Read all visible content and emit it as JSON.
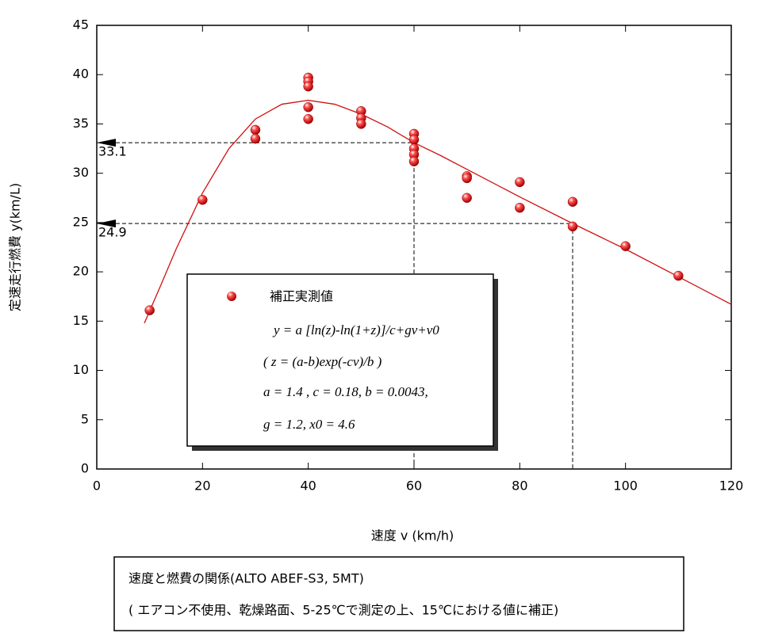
{
  "chart_data": {
    "type": "scatter",
    "x_label": "速度 v (km/h)",
    "y_label": "定速走行燃費 y(km/L)",
    "xlim": [
      0,
      120
    ],
    "xticks": [
      0,
      20,
      40,
      60,
      80,
      100,
      120
    ],
    "ylim": [
      0,
      45
    ],
    "yticks": [
      0,
      5,
      10,
      15,
      20,
      25,
      30,
      35,
      40,
      45
    ],
    "series": [
      {
        "name": "補正実測値",
        "color": "#e01010",
        "x": [
          10,
          20,
          30,
          30,
          40,
          40,
          40,
          40,
          40,
          50,
          50,
          50,
          60,
          60,
          60,
          60,
          60,
          70,
          70,
          70,
          80,
          80,
          90,
          90,
          100,
          110
        ],
        "values": [
          16.1,
          27.3,
          34.4,
          33.5,
          39.7,
          39.3,
          38.8,
          36.7,
          35.5,
          36.3,
          35.6,
          35.0,
          34.0,
          33.4,
          32.5,
          31.9,
          31.2,
          29.7,
          29.5,
          27.5,
          29.1,
          26.5,
          27.1,
          24.6,
          22.6,
          19.6
        ]
      }
    ],
    "fit": {
      "color": "#d01010",
      "x": [
        9,
        12,
        15,
        20,
        25,
        30,
        35,
        40,
        45,
        50,
        55,
        60,
        65,
        70,
        80,
        90,
        100,
        110,
        120
      ],
      "values": [
        14.8,
        18.5,
        22.3,
        28,
        32.5,
        35.5,
        37,
        37.4,
        37,
        36,
        34.7,
        33.1,
        31.8,
        30.4,
        27.6,
        24.9,
        22.3,
        19.5,
        16.7
      ]
    },
    "reference_lines": [
      {
        "x": 60,
        "y": 33.1
      },
      {
        "x": 90,
        "y": 24.9
      }
    ],
    "legend_text": [
      "y = a [ln(z)-ln(1+z)]/c+gv+v0",
      "( z = (a-b)exp(-cv)/b )",
      "a = 1.4 , c = 0.18, b = 0.0043,",
      "g = 1.2, x0 = 4.6"
    ],
    "caption": [
      "速度と燃費の関係(ALTO ABEF-S3, 5MT)",
      "( エアコン不使用、乾燥路面、5-25℃で測定の上、15℃における値に補正)"
    ]
  }
}
